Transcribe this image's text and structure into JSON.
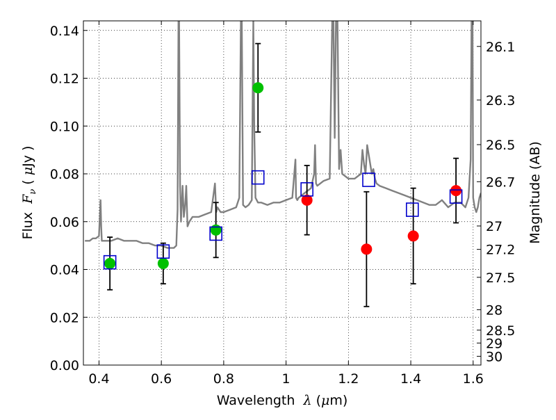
{
  "chart_data": {
    "type": "scatter",
    "xlabel": {
      "prefix": "Wavelength",
      "symbol": "λ",
      "unit_open": " (",
      "unit_mu": "μ",
      "unit_rest": "m)"
    },
    "ylabel": {
      "prefix": "Flux",
      "symbol": "F",
      "sub": "ν",
      "unit_open": " ( ",
      "unit_mu": "μ",
      "unit_rest": "Jy )"
    },
    "y2label": "Magnitude (AB)",
    "xlim": [
      0.35,
      1.625
    ],
    "ylim": [
      0.0,
      0.144
    ],
    "grid": true,
    "x_ticks": [
      {
        "v": 0.4,
        "label": "0.4"
      },
      {
        "v": 0.6,
        "label": "0.6"
      },
      {
        "v": 0.8,
        "label": "0.8"
      },
      {
        "v": 1.0,
        "label": "1"
      },
      {
        "v": 1.2,
        "label": "1.2"
      },
      {
        "v": 1.4,
        "label": "1.4"
      },
      {
        "v": 1.6,
        "label": "1.6"
      }
    ],
    "y_ticks": [
      {
        "v": 0.0,
        "label": "0.00"
      },
      {
        "v": 0.02,
        "label": "0.02"
      },
      {
        "v": 0.04,
        "label": "0.04"
      },
      {
        "v": 0.06,
        "label": "0.06"
      },
      {
        "v": 0.08,
        "label": "0.08"
      },
      {
        "v": 0.1,
        "label": "0.10"
      },
      {
        "v": 0.12,
        "label": "0.12"
      },
      {
        "v": 0.14,
        "label": "0.14"
      }
    ],
    "mag_ticks": [
      {
        "mag": 26.1,
        "label": "26.1"
      },
      {
        "mag": 26.3,
        "label": "26.3"
      },
      {
        "mag": 26.5,
        "label": "26.5"
      },
      {
        "mag": 26.7,
        "label": "26.7"
      },
      {
        "mag": 27.0,
        "label": "27"
      },
      {
        "mag": 27.2,
        "label": "27.2"
      },
      {
        "mag": 27.5,
        "label": "27.5"
      },
      {
        "mag": 28.0,
        "label": "28"
      },
      {
        "mag": 28.5,
        "label": "28.5"
      },
      {
        "mag": 29.0,
        "label": "29"
      },
      {
        "mag": 30.0,
        "label": "30"
      }
    ],
    "spectrum": {
      "color": "#808080",
      "x": [
        0.355,
        0.37,
        0.38,
        0.39,
        0.4,
        0.405,
        0.407,
        0.409,
        0.412,
        0.42,
        0.44,
        0.46,
        0.48,
        0.5,
        0.52,
        0.54,
        0.56,
        0.58,
        0.6,
        0.62,
        0.64,
        0.648,
        0.652,
        0.655,
        0.657,
        0.66,
        0.663,
        0.668,
        0.672,
        0.675,
        0.678,
        0.68,
        0.684,
        0.69,
        0.7,
        0.72,
        0.74,
        0.76,
        0.772,
        0.776,
        0.78,
        0.79,
        0.8,
        0.82,
        0.84,
        0.85,
        0.855,
        0.858,
        0.862,
        0.87,
        0.88,
        0.89,
        0.895,
        0.898,
        0.902,
        0.906,
        0.91,
        0.92,
        0.94,
        0.96,
        0.98,
        1.0,
        1.02,
        1.03,
        1.032,
        1.036,
        1.04,
        1.06,
        1.08,
        1.09,
        1.093,
        1.096,
        1.1,
        1.12,
        1.14,
        1.148,
        1.152,
        1.156,
        1.16,
        1.165,
        1.17,
        1.175,
        1.18,
        1.19,
        1.2,
        1.22,
        1.24,
        1.245,
        1.25,
        1.255,
        1.26,
        1.275,
        1.28,
        1.285,
        1.29,
        1.3,
        1.32,
        1.34,
        1.36,
        1.38,
        1.4,
        1.42,
        1.44,
        1.46,
        1.48,
        1.5,
        1.52,
        1.54,
        1.56,
        1.575,
        1.585,
        1.592,
        1.595,
        1.598,
        1.6,
        1.605,
        1.61,
        1.615,
        1.62,
        1.625
      ],
      "y": [
        0.052,
        0.052,
        0.053,
        0.053,
        0.054,
        0.069,
        0.058,
        0.052,
        0.052,
        0.052,
        0.052,
        0.053,
        0.052,
        0.052,
        0.052,
        0.051,
        0.051,
        0.05,
        0.05,
        0.049,
        0.049,
        0.05,
        0.065,
        0.144,
        0.144,
        0.075,
        0.06,
        0.075,
        0.062,
        0.065,
        0.07,
        0.075,
        0.058,
        0.06,
        0.062,
        0.062,
        0.063,
        0.064,
        0.076,
        0.064,
        0.066,
        0.064,
        0.064,
        0.065,
        0.066,
        0.07,
        0.144,
        0.144,
        0.067,
        0.066,
        0.067,
        0.069,
        0.144,
        0.1,
        0.07,
        0.069,
        0.068,
        0.068,
        0.067,
        0.068,
        0.068,
        0.069,
        0.07,
        0.086,
        0.07,
        0.069,
        0.07,
        0.072,
        0.074,
        0.08,
        0.092,
        0.076,
        0.075,
        0.077,
        0.078,
        0.144,
        0.144,
        0.095,
        0.144,
        0.144,
        0.082,
        0.09,
        0.08,
        0.079,
        0.078,
        0.078,
        0.08,
        0.09,
        0.084,
        0.08,
        0.092,
        0.08,
        0.082,
        0.078,
        0.076,
        0.075,
        0.074,
        0.073,
        0.072,
        0.071,
        0.07,
        0.069,
        0.068,
        0.067,
        0.067,
        0.069,
        0.066,
        0.068,
        0.068,
        0.066,
        0.07,
        0.086,
        0.144,
        0.144,
        0.07,
        0.066,
        0.064,
        0.066,
        0.07,
        0.072
      ]
    },
    "series": [
      {
        "marker": "circle",
        "color": "#00c000",
        "points": [
          {
            "x": 0.435,
            "y": 0.0425,
            "err": 0.011
          },
          {
            "x": 0.606,
            "y": 0.0425,
            "err": 0.0085
          },
          {
            "x": 0.775,
            "y": 0.0565,
            "err": 0.0115
          },
          {
            "x": 0.91,
            "y": 0.116,
            "err": 0.0185
          }
        ]
      },
      {
        "marker": "circle",
        "color": "#ff0000",
        "points": [
          {
            "x": 1.067,
            "y": 0.069,
            "err": 0.0145
          },
          {
            "x": 1.258,
            "y": 0.0485,
            "err": 0.024
          },
          {
            "x": 1.408,
            "y": 0.054,
            "err": 0.02
          },
          {
            "x": 1.545,
            "y": 0.073,
            "err": 0.0135
          }
        ]
      },
      {
        "marker": "square-open",
        "color": "#0000cc",
        "points": [
          {
            "x": 0.435,
            "y": 0.043
          },
          {
            "x": 0.606,
            "y": 0.0475
          },
          {
            "x": 0.775,
            "y": 0.055
          },
          {
            "x": 0.91,
            "y": 0.0785
          },
          {
            "x": 1.067,
            "y": 0.0735
          },
          {
            "x": 1.265,
            "y": 0.0775
          },
          {
            "x": 1.405,
            "y": 0.065
          },
          {
            "x": 1.545,
            "y": 0.0705
          }
        ]
      }
    ]
  }
}
